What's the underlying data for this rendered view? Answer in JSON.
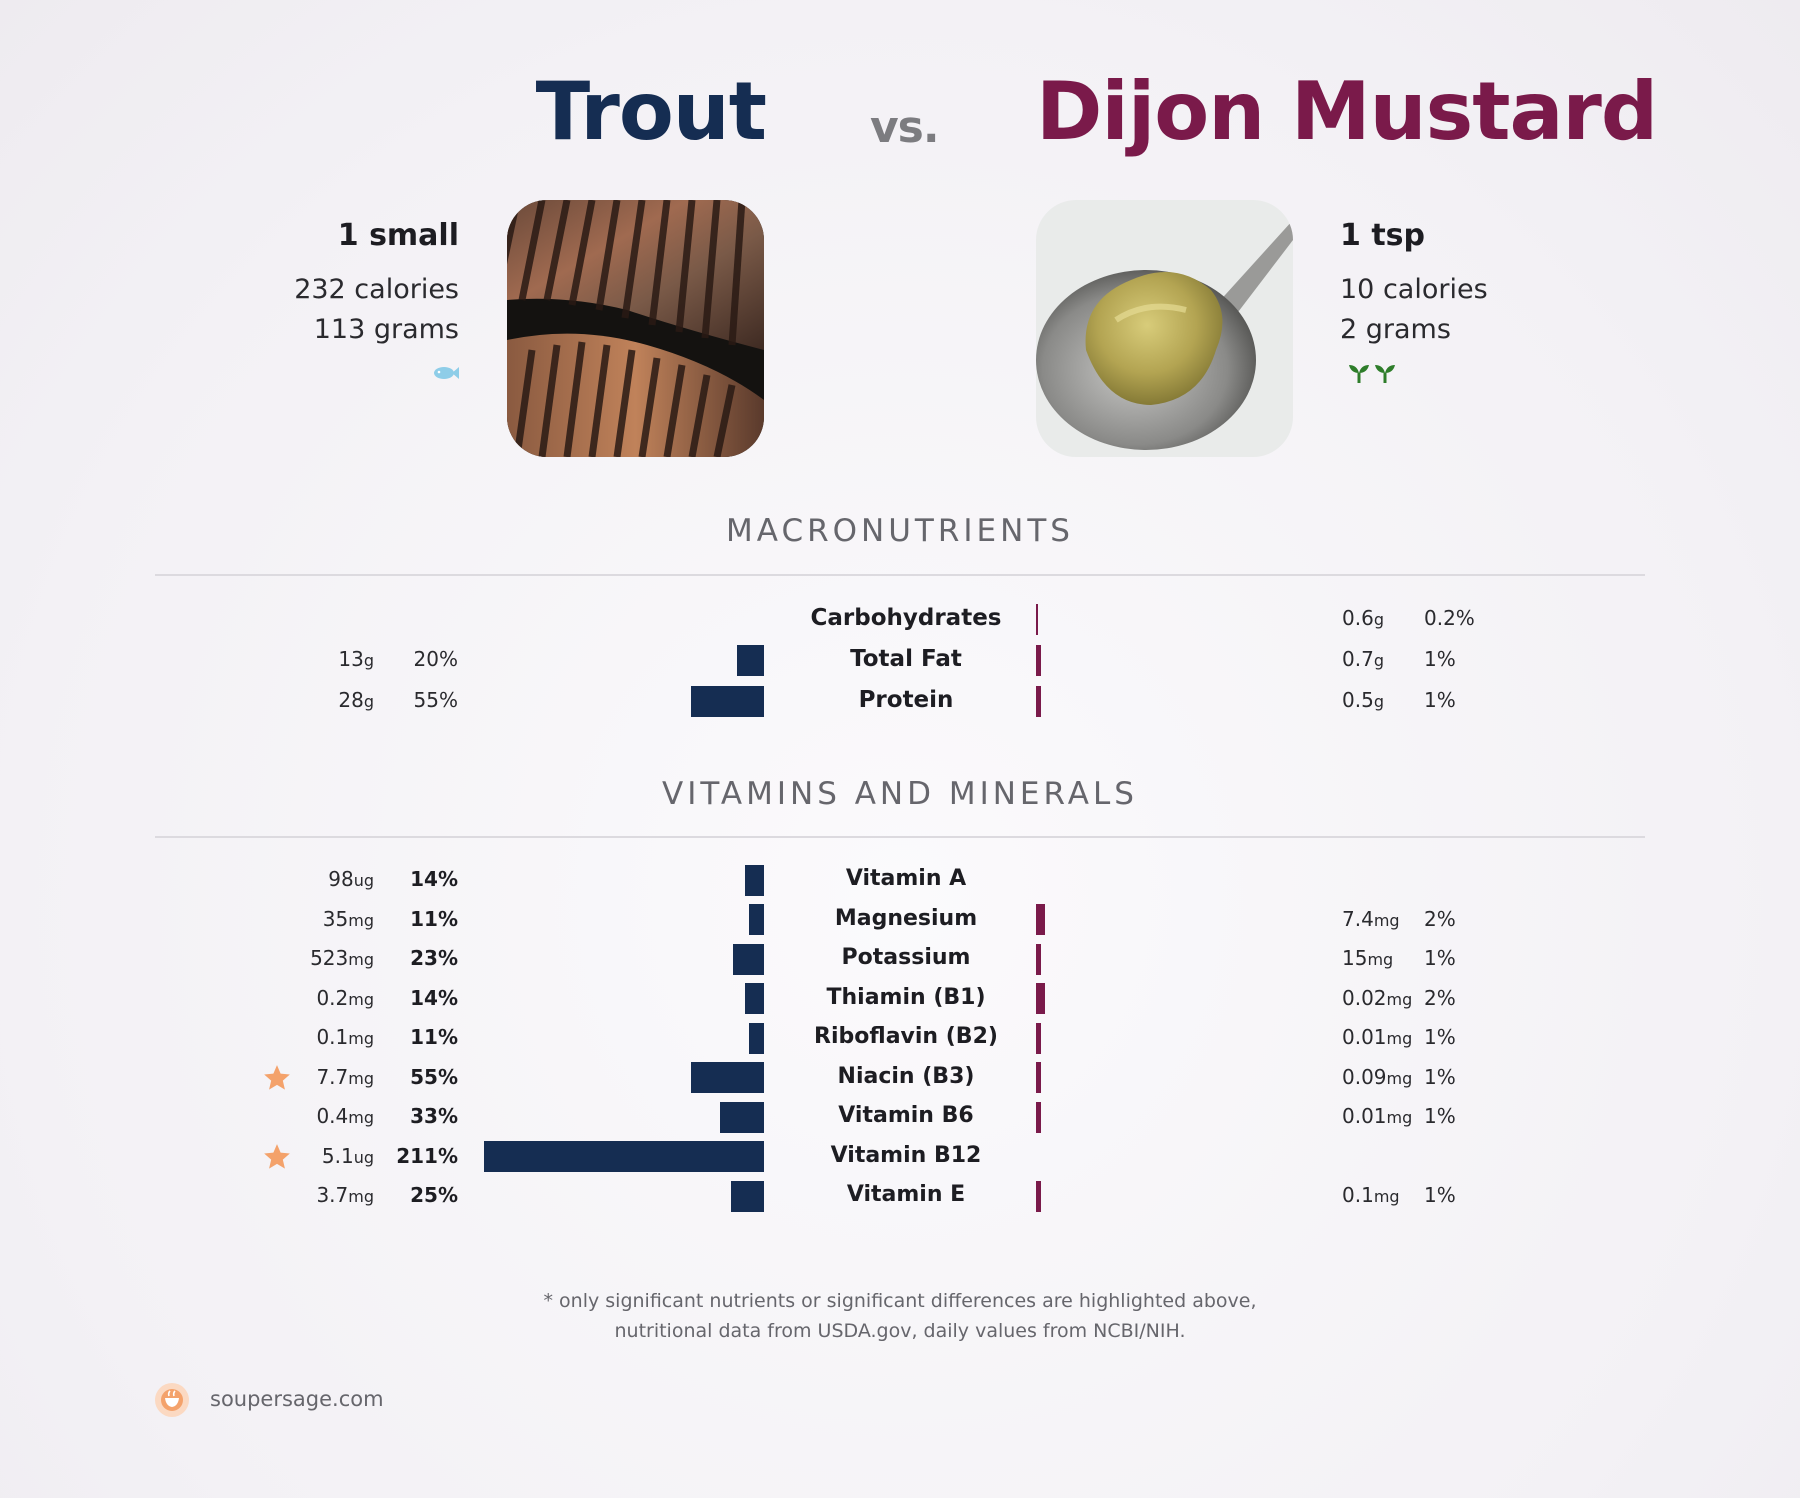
{
  "header": {
    "food_a": "Trout",
    "vs": "vs.",
    "food_b": "Dijon Mustard"
  },
  "food_a": {
    "serving": "1 small",
    "calories": "232 calories",
    "grams": "113 grams",
    "diet_icons": [
      "fish-icon"
    ]
  },
  "food_b": {
    "serving": "1 tsp",
    "calories": "10 calories",
    "grams": "2 grams",
    "diet_icons": [
      "sprout-icon",
      "sprout-icon"
    ]
  },
  "colors": {
    "food_a": "#152d52",
    "food_b": "#7a1a4a",
    "star": "#f4a26b"
  },
  "sections": {
    "macros_title": "MACRONUTRIENTS",
    "vitamins_title": "VITAMINS AND MINERALS"
  },
  "chart_data": [
    {
      "type": "bar",
      "orientation": "horizontal-diverging",
      "categories": [
        "Carbohydrates",
        "Total Fat",
        "Protein"
      ],
      "series": [
        {
          "name": "Trout",
          "amounts": [
            "",
            "13",
            "28"
          ],
          "units": [
            "",
            "g",
            "g"
          ],
          "percent_labels": [
            "",
            "20%",
            "55%"
          ],
          "values": [
            null,
            20,
            55
          ]
        },
        {
          "name": "Dijon Mustard",
          "amounts": [
            "0.6",
            "0.7",
            "0.5"
          ],
          "units": [
            "g",
            "g",
            "g"
          ],
          "percent_labels": [
            "0.2%",
            "1%",
            "1%"
          ],
          "values": [
            0.2,
            1,
            1
          ]
        }
      ]
    },
    {
      "type": "bar",
      "orientation": "horizontal-diverging",
      "categories": [
        "Vitamin A",
        "Magnesium",
        "Potassium",
        "Thiamin (B1)",
        "Riboflavin (B2)",
        "Niacin (B3)",
        "Vitamin B6",
        "Vitamin B12",
        "Vitamin E"
      ],
      "series": [
        {
          "name": "Trout",
          "amounts": [
            "98",
            "35",
            "523",
            "0.2",
            "0.1",
            "7.7",
            "0.4",
            "5.1",
            "3.7"
          ],
          "units": [
            "ug",
            "mg",
            "mg",
            "mg",
            "mg",
            "mg",
            "mg",
            "ug",
            "mg"
          ],
          "percent_labels": [
            "14%",
            "11%",
            "23%",
            "14%",
            "11%",
            "55%",
            "33%",
            "211%",
            "25%"
          ],
          "values": [
            14,
            11,
            23,
            14,
            11,
            55,
            33,
            211,
            25
          ],
          "starred": [
            false,
            false,
            false,
            false,
            false,
            true,
            false,
            true,
            false
          ]
        },
        {
          "name": "Dijon Mustard",
          "amounts": [
            "",
            "7.4",
            "15",
            "0.02",
            "0.01",
            "0.09",
            "0.01",
            "",
            "0.1"
          ],
          "units": [
            "",
            "mg",
            "mg",
            "mg",
            "mg",
            "mg",
            "mg",
            "",
            "mg"
          ],
          "percent_labels": [
            "",
            "2%",
            "1%",
            "2%",
            "1%",
            "1%",
            "1%",
            "",
            "1%"
          ],
          "values": [
            null,
            2,
            1,
            2,
            1,
            1,
            1,
            null,
            1
          ]
        }
      ]
    }
  ],
  "footer": {
    "note_line1": "* only significant nutrients or significant differences are highlighted above,",
    "note_line2": "nutritional data from USDA.gov, daily values from NCBI/NIH.",
    "brand": "soupersage.com"
  }
}
